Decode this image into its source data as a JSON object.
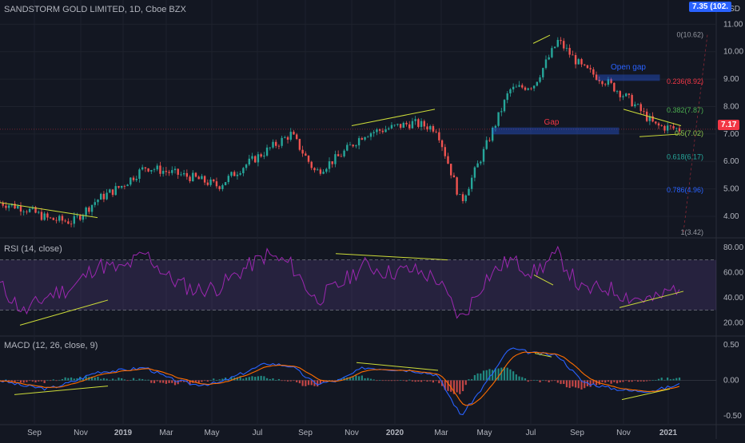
{
  "header": {
    "symbol_title": "SANDSTORM GOLD LIMITED, 1D, Cboe BZX"
  },
  "price_scale": {
    "currency": "USD",
    "last_tag": "7.35 (102.",
    "current_tag": "7.17",
    "last_tag_color": "#2962ff",
    "current_tag_color": "#f23645",
    "ticks": [
      "11.00",
      "10.00",
      "9.00",
      "8.00",
      "7.00",
      "6.00",
      "5.00",
      "4.00"
    ]
  },
  "fibonacci": [
    {
      "label": "0(10.62)",
      "level": 10.62,
      "color": "#9598a1"
    },
    {
      "label": "0.236(8.92)",
      "level": 8.92,
      "color": "#f23645"
    },
    {
      "label": "0.382(7.87)",
      "level": 7.87,
      "color": "#4caf50"
    },
    {
      "label": "0.5(7.02)",
      "level": 7.02,
      "color": "#8bc34a"
    },
    {
      "label": "0.618(6.17)",
      "level": 6.17,
      "color": "#26a69a"
    },
    {
      "label": "0.786(4.96)",
      "level": 4.96,
      "color": "#2962ff"
    },
    {
      "label": "1(3.42)",
      "level": 3.42,
      "color": "#9598a1"
    }
  ],
  "annotations": {
    "open_gap": "Open gap",
    "gap": "Gap"
  },
  "rsi": {
    "title": "RSI (14, close)",
    "ticks": [
      "80.00",
      "60.00",
      "40.00",
      "20.00"
    ],
    "overbought": 70,
    "oversold": 30
  },
  "macd": {
    "title": "MACD (12, 26, close, 9)",
    "ticks": [
      "0.50",
      "0.00",
      "-0.50"
    ]
  },
  "time_axis": [
    "Sep",
    "Nov",
    "2019",
    "Mar",
    "May",
    "Jul",
    "Sep",
    "Nov",
    "2020",
    "Mar",
    "May",
    "Jul",
    "Sep",
    "Nov",
    "2021"
  ],
  "chart_data": [
    {
      "type": "candlestick",
      "title": "SANDSTORM GOLD LIMITED, 1D, Cboe BZX",
      "ylabel": "USD",
      "ylim": [
        3.3,
        11.3
      ],
      "x": [
        "Aug 2018",
        "Sep 2018",
        "Oct 2018",
        "Nov 2018",
        "Dec 2018",
        "Jan 2019",
        "Feb 2019",
        "Mar 2019",
        "Apr 2019",
        "May 2019",
        "Jun 2019",
        "Jul 2019",
        "Aug 2019",
        "Sep 2019",
        "Oct 2019",
        "Nov 2019",
        "Dec 2019",
        "Jan 2020",
        "Feb 2020",
        "Mar 2020",
        "Apr 2020",
        "May 2020",
        "Jun 2020",
        "Jul 2020",
        "Aug 2020",
        "Sep 2020",
        "Oct 2020",
        "Nov 2020",
        "Dec 2020"
      ],
      "close": [
        4.5,
        4.3,
        3.9,
        3.8,
        4.6,
        5.1,
        5.8,
        5.6,
        5.4,
        5.1,
        5.8,
        6.4,
        7.0,
        5.6,
        6.2,
        7.0,
        7.2,
        7.4,
        7.2,
        4.5,
        6.5,
        8.6,
        8.8,
        10.4,
        9.4,
        8.9,
        8.2,
        7.3,
        7.17
      ]
    },
    {
      "type": "line",
      "title": "RSI (14, close)",
      "ylim": [
        10,
        85
      ],
      "x": [
        "Aug 2018",
        "Sep 2018",
        "Oct 2018",
        "Nov 2018",
        "Dec 2018",
        "Jan 2019",
        "Feb 2019",
        "Mar 2019",
        "Apr 2019",
        "May 2019",
        "Jun 2019",
        "Jul 2019",
        "Aug 2019",
        "Sep 2019",
        "Oct 2019",
        "Nov 2019",
        "Dec 2019",
        "Jan 2020",
        "Feb 2020",
        "Mar 2020",
        "Apr 2020",
        "May 2020",
        "Jun 2020",
        "Jul 2020",
        "Aug 2020",
        "Sep 2020",
        "Oct 2020",
        "Nov 2020",
        "Dec 2020"
      ],
      "values": [
        50,
        28,
        42,
        48,
        66,
        62,
        75,
        55,
        46,
        48,
        62,
        74,
        66,
        38,
        50,
        66,
        60,
        62,
        55,
        22,
        55,
        70,
        60,
        74,
        45,
        48,
        40,
        38,
        50
      ]
    },
    {
      "type": "line",
      "title": "MACD (12, 26, close, 9)",
      "ylim": [
        -0.6,
        0.6
      ],
      "x": [
        "Aug 2018",
        "Sep 2018",
        "Oct 2018",
        "Nov 2018",
        "Dec 2018",
        "Jan 2019",
        "Feb 2019",
        "Mar 2019",
        "Apr 2019",
        "May 2019",
        "Jun 2019",
        "Jul 2019",
        "Aug 2019",
        "Sep 2019",
        "Oct 2019",
        "Nov 2019",
        "Dec 2019",
        "Jan 2020",
        "Feb 2020",
        "Mar 2020",
        "Apr 2020",
        "May 2020",
        "Jun 2020",
        "Jul 2020",
        "Aug 2020",
        "Sep 2020",
        "Oct 2020",
        "Nov 2020",
        "Dec 2020"
      ],
      "values": [
        0.0,
        -0.08,
        -0.12,
        -0.02,
        0.12,
        0.14,
        0.18,
        0.02,
        -0.06,
        -0.04,
        0.1,
        0.24,
        0.2,
        -0.05,
        0.0,
        0.18,
        0.16,
        0.14,
        0.08,
        -0.5,
        -0.05,
        0.45,
        0.38,
        0.35,
        -0.02,
        -0.1,
        -0.15,
        -0.14,
        -0.06
      ]
    }
  ]
}
